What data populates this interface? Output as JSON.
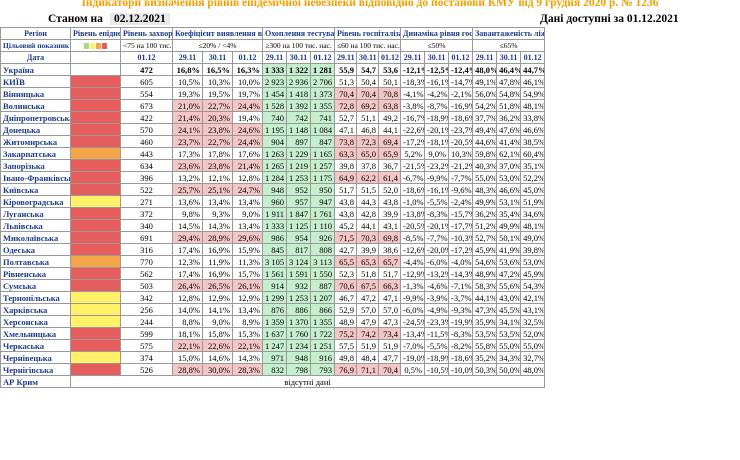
{
  "title": "Індикатори визначення рівнів епідемічної небезпеки відповідно до постанови КМУ від 9 грудня 2020 р. № 1236",
  "status_label": "Станом на",
  "status_date": "02.12.2021",
  "data_available": "Дані доступні за 01.12.2021",
  "headers": {
    "region": "Регіон",
    "level": "Рівень епіднебезпеки",
    "morbidity": "Рівень захворюваності",
    "detection": "Коефіцієнт виявлення випадків інфікування",
    "testing": "Охоплення тестуванням",
    "hosp": "Рівень госпіталізацій",
    "hosp_dyn": "Динаміка рівня госпіталізацій",
    "beds": "Завантаженість ліжок з киснем"
  },
  "target": {
    "label": "Цільовий показник",
    "morbidity": "<75 на 100 тис. нас.",
    "detection": "≤20% / <4%",
    "testing": "≥300 на 100 тис. нас.",
    "hosp": "≤60 на 100 тис. нас.",
    "hosp_dyn": "≤50%",
    "beds": "≤65%"
  },
  "date_label": "Дата",
  "dates": {
    "morb": "01.12",
    "triple": [
      "29.11",
      "30.11",
      "01.12"
    ]
  },
  "level_legend_colors": [
    "#aad87a",
    "#fff26a",
    "#f6a64a",
    "#e55d5d"
  ],
  "rows": [
    {
      "region": "Україна",
      "level": "",
      "morb": "472",
      "det": [
        "16,8%",
        "16,5%",
        "16,3%"
      ],
      "test": [
        "1 333",
        "1 322",
        "1 281"
      ],
      "hosp": [
        "55,9",
        "54,7",
        "53,6"
      ],
      "dyn": [
        "-12,1%",
        "-12,5%",
        "-12,4%"
      ],
      "beds": [
        "48,0%",
        "46,4%",
        "44,7%"
      ]
    },
    {
      "region": "КИЇВ",
      "level": "red",
      "morb": "605",
      "det": [
        "10,5%",
        "10,3%",
        "10,0%"
      ],
      "test": [
        "2 923",
        "2 936",
        "2 706"
      ],
      "hosp": [
        "51,3",
        "50,4",
        "50,1"
      ],
      "dyn": [
        "-18,3%",
        "-16,1%",
        "-14,7%"
      ],
      "beds": [
        "49,1%",
        "47,8%",
        "46,1%"
      ]
    },
    {
      "region": "Вінницька",
      "level": "red",
      "morb": "554",
      "det": [
        "19,3%",
        "19,5%",
        "19,7%"
      ],
      "test": [
        "1 454",
        "1 418",
        "1 373"
      ],
      "hosp": [
        "70,4",
        "70,4",
        "70,8"
      ],
      "dyn": [
        "-4,1%",
        "-4,2%",
        "-2,1%"
      ],
      "beds": [
        "56,0%",
        "54,8%",
        "54,9%"
      ]
    },
    {
      "region": "Волинська",
      "level": "red",
      "morb": "673",
      "det": [
        "21,0%",
        "22,7%",
        "24,4%"
      ],
      "test": [
        "1 528",
        "1 392",
        "1 355"
      ],
      "hosp": [
        "72,8",
        "69,2",
        "63,8"
      ],
      "dyn": [
        "-3,8%",
        "-8,7%",
        "-16,9%"
      ],
      "beds": [
        "54,2%",
        "51,8%",
        "48,1%"
      ]
    },
    {
      "region": "Дніпропетровська",
      "level": "red",
      "morb": "422",
      "det": [
        "21,4%",
        "20,3%",
        "19,4%"
      ],
      "test": [
        "740",
        "742",
        "741"
      ],
      "hosp": [
        "52,7",
        "51,1",
        "49,2"
      ],
      "dyn": [
        "-16,7%",
        "-18,9%",
        "-18,6%"
      ],
      "beds": [
        "37,7%",
        "36,2%",
        "33,8%"
      ]
    },
    {
      "region": "Донецька",
      "level": "red",
      "morb": "570",
      "det": [
        "24,1%",
        "23,8%",
        "24,6%"
      ],
      "test": [
        "1 195",
        "1 148",
        "1 084"
      ],
      "hosp": [
        "47,1",
        "46,8",
        "44,1"
      ],
      "dyn": [
        "-22,6%",
        "-20,1%",
        "-23,7%"
      ],
      "beds": [
        "49,4%",
        "47,6%",
        "46,6%"
      ]
    },
    {
      "region": "Житомирська",
      "level": "red",
      "morb": "460",
      "det": [
        "23,7%",
        "22,7%",
        "24,4%"
      ],
      "test": [
        "904",
        "897",
        "847"
      ],
      "hosp": [
        "73,8",
        "72,3",
        "69,4"
      ],
      "dyn": [
        "-17,2%",
        "-18,1%",
        "-20,5%"
      ],
      "beds": [
        "44,6%",
        "41,4%",
        "38,5%"
      ]
    },
    {
      "region": "Закарпатська",
      "level": "orange",
      "morb": "443",
      "det": [
        "17,3%",
        "17,8%",
        "17,6%"
      ],
      "test": [
        "1 263",
        "1 229",
        "1 165"
      ],
      "hosp": [
        "63,3",
        "65,0",
        "65,9"
      ],
      "dyn": [
        "5,2%",
        "9,0%",
        "10,3%"
      ],
      "beds": [
        "59,8%",
        "62,1%",
        "60,4%"
      ]
    },
    {
      "region": "Запорізька",
      "level": "red",
      "morb": "634",
      "det": [
        "23,6%",
        "23,8%",
        "21,4%"
      ],
      "test": [
        "1 265",
        "1 219",
        "1 257"
      ],
      "hosp": [
        "39,8",
        "37,8",
        "36,7"
      ],
      "dyn": [
        "-21,5%",
        "-23,2%",
        "-21,2%"
      ],
      "beds": [
        "40,3%",
        "37,0%",
        "35,1%"
      ]
    },
    {
      "region": "Івано-Франківська",
      "level": "red",
      "morb": "396",
      "det": [
        "13,2%",
        "12,1%",
        "12,8%"
      ],
      "test": [
        "1 284",
        "1 253",
        "1 175"
      ],
      "hosp": [
        "64,9",
        "62,2",
        "61,4"
      ],
      "dyn": [
        "-6,7%",
        "-9,9%",
        "-7,7%"
      ],
      "beds": [
        "55,0%",
        "53,0%",
        "52,2%"
      ]
    },
    {
      "region": "Київська",
      "level": "red",
      "morb": "522",
      "det": [
        "25,7%",
        "25,1%",
        "24,7%"
      ],
      "test": [
        "948",
        "952",
        "950"
      ],
      "hosp": [
        "51,7",
        "51,5",
        "52,0"
      ],
      "dyn": [
        "-18,6%",
        "-16,1%",
        "-9,6%"
      ],
      "beds": [
        "48,3%",
        "46,6%",
        "45,0%"
      ]
    },
    {
      "region": "Кіровоградська",
      "level": "yellow",
      "morb": "271",
      "det": [
        "13,6%",
        "13,4%",
        "13,4%"
      ],
      "test": [
        "960",
        "957",
        "947"
      ],
      "hosp": [
        "43,8",
        "44,3",
        "43,8"
      ],
      "dyn": [
        "-1,0%",
        "-5,5%",
        "-2,4%"
      ],
      "beds": [
        "49,9%",
        "53,1%",
        "51,9%"
      ]
    },
    {
      "region": "Луганська",
      "level": "red",
      "morb": "372",
      "det": [
        "9,8%",
        "9,3%",
        "9,0%"
      ],
      "test": [
        "1 911",
        "1 847",
        "1 761"
      ],
      "hosp": [
        "43,8",
        "42,8",
        "39,9"
      ],
      "dyn": [
        "-13,8%",
        "-8,3%",
        "-15,7%"
      ],
      "beds": [
        "36,2%",
        "35,4%",
        "34,6%"
      ]
    },
    {
      "region": "Львівська",
      "level": "red",
      "morb": "340",
      "det": [
        "14,5%",
        "14,3%",
        "13,4%"
      ],
      "test": [
        "1 333",
        "1 125",
        "1 110"
      ],
      "hosp": [
        "45,2",
        "44,1",
        "43,1"
      ],
      "dyn": [
        "-20,5%",
        "-20,1%",
        "-17,7%"
      ],
      "beds": [
        "51,2%",
        "49,9%",
        "48,1%"
      ]
    },
    {
      "region": "Миколаївська",
      "level": "red",
      "morb": "691",
      "det": [
        "29,4%",
        "28,9%",
        "29,6%"
      ],
      "test": [
        "986",
        "954",
        "926"
      ],
      "hosp": [
        "71,5",
        "70,3",
        "69,8"
      ],
      "dyn": [
        "-8,5%",
        "-7,7%",
        "-10,3%"
      ],
      "beds": [
        "52,7%",
        "50,1%",
        "49,0%"
      ]
    },
    {
      "region": "Одеська",
      "level": "red",
      "morb": "316",
      "det": [
        "17,4%",
        "16,9%",
        "15,9%"
      ],
      "test": [
        "845",
        "817",
        "808"
      ],
      "hosp": [
        "42,7",
        "39,9",
        "38,6"
      ],
      "dyn": [
        "-12,6%",
        "-20,0%",
        "-17,2%"
      ],
      "beds": [
        "45,9%",
        "41,9%",
        "39,8%"
      ]
    },
    {
      "region": "Полтавська",
      "level": "orange",
      "morb": "770",
      "det": [
        "12,3%",
        "11,9%",
        "11,3%"
      ],
      "test": [
        "3 105",
        "3 124",
        "3 113"
      ],
      "hosp": [
        "65,5",
        "65,3",
        "65,7"
      ],
      "dyn": [
        "-4,4%",
        "-6,0%",
        "-4,0%"
      ],
      "beds": [
        "54,6%",
        "53,6%",
        "53,0%"
      ]
    },
    {
      "region": "Рівненська",
      "level": "red",
      "morb": "562",
      "det": [
        "17,4%",
        "16,9%",
        "15,7%"
      ],
      "test": [
        "1 561",
        "1 591",
        "1 550"
      ],
      "hosp": [
        "52,3",
        "51,8",
        "51,7"
      ],
      "dyn": [
        "-12,9%",
        "-13,2%",
        "-14,3%"
      ],
      "beds": [
        "48,9%",
        "47,2%",
        "45,9%"
      ]
    },
    {
      "region": "Сумська",
      "level": "red",
      "morb": "503",
      "det": [
        "26,4%",
        "26,5%",
        "26,1%"
      ],
      "test": [
        "914",
        "932",
        "887"
      ],
      "hosp": [
        "70,6",
        "67,5",
        "66,3"
      ],
      "dyn": [
        "-1,3%",
        "-4,6%",
        "-7,1%"
      ],
      "beds": [
        "58,3%",
        "55,6%",
        "54,3%"
      ]
    },
    {
      "region": "Тернопільська",
      "level": "yellow",
      "morb": "342",
      "det": [
        "12,8%",
        "12,9%",
        "12,9%"
      ],
      "test": [
        "1 299",
        "1 253",
        "1 207"
      ],
      "hosp": [
        "46,7",
        "47,2",
        "47,1"
      ],
      "dyn": [
        "-9,9%",
        "-3,9%",
        "-3,7%"
      ],
      "beds": [
        "44,1%",
        "43,0%",
        "42,1%"
      ]
    },
    {
      "region": "Харківська",
      "level": "yellow",
      "morb": "256",
      "det": [
        "14,0%",
        "14,1%",
        "13,4%"
      ],
      "test": [
        "876",
        "886",
        "866"
      ],
      "hosp": [
        "52,9",
        "57,0",
        "57,0"
      ],
      "dyn": [
        "-6,0%",
        "-4,9%",
        "-9,3%"
      ],
      "beds": [
        "47,3%",
        "45,5%",
        "43,1%"
      ]
    },
    {
      "region": "Херсонська",
      "level": "yellow",
      "morb": "244",
      "det": [
        "8,8%",
        "9,0%",
        "8,9%"
      ],
      "test": [
        "1 359",
        "1 370",
        "1 355"
      ],
      "hosp": [
        "48,9",
        "47,9",
        "47,3"
      ],
      "dyn": [
        "-24,5%",
        "-23,3%",
        "-19,9%"
      ],
      "beds": [
        "35,9%",
        "34,1%",
        "32,5%"
      ]
    },
    {
      "region": "Хмельницька",
      "level": "red",
      "morb": "599",
      "det": [
        "18,1%",
        "15,8%",
        "15,3%"
      ],
      "test": [
        "1 637",
        "1 760",
        "1 722"
      ],
      "hosp": [
        "75,2",
        "74,2",
        "73,4"
      ],
      "dyn": [
        "-13,4%",
        "-11,5%",
        "-8,3%"
      ],
      "beds": [
        "53,5%",
        "53,5%",
        "52,0%"
      ]
    },
    {
      "region": "Черкаська",
      "level": "red",
      "morb": "575",
      "det": [
        "22,1%",
        "22,6%",
        "22,1%"
      ],
      "test": [
        "1 247",
        "1 234",
        "1 251"
      ],
      "hosp": [
        "57,5",
        "51,9",
        "51,9"
      ],
      "dyn": [
        "-7,0%",
        "-5,5%",
        "-8,2%"
      ],
      "beds": [
        "55,8%",
        "55,0%",
        "55,0%"
      ]
    },
    {
      "region": "Чернівецька",
      "level": "yellow",
      "morb": "374",
      "det": [
        "15,0%",
        "14,6%",
        "14,3%"
      ],
      "test": [
        "971",
        "948",
        "916"
      ],
      "hosp": [
        "49,8",
        "48,4",
        "47,7"
      ],
      "dyn": [
        "-19,0%",
        "-18,9%",
        "-18,6%"
      ],
      "beds": [
        "35,2%",
        "34,3%",
        "32,7%"
      ]
    },
    {
      "region": "Чернігівська",
      "level": "red",
      "morb": "526",
      "det": [
        "28,8%",
        "30,0%",
        "28,3%"
      ],
      "test": [
        "832",
        "798",
        "793"
      ],
      "hosp": [
        "76,9",
        "71,1",
        "70,4"
      ],
      "dyn": [
        "0,5%",
        "-10,5%",
        "-10,0%"
      ],
      "beds": [
        "50,3%",
        "50,0%",
        "48,0%"
      ]
    }
  ],
  "ar_krym": {
    "region": "АР Крим",
    "note": "відсутні дані"
  }
}
